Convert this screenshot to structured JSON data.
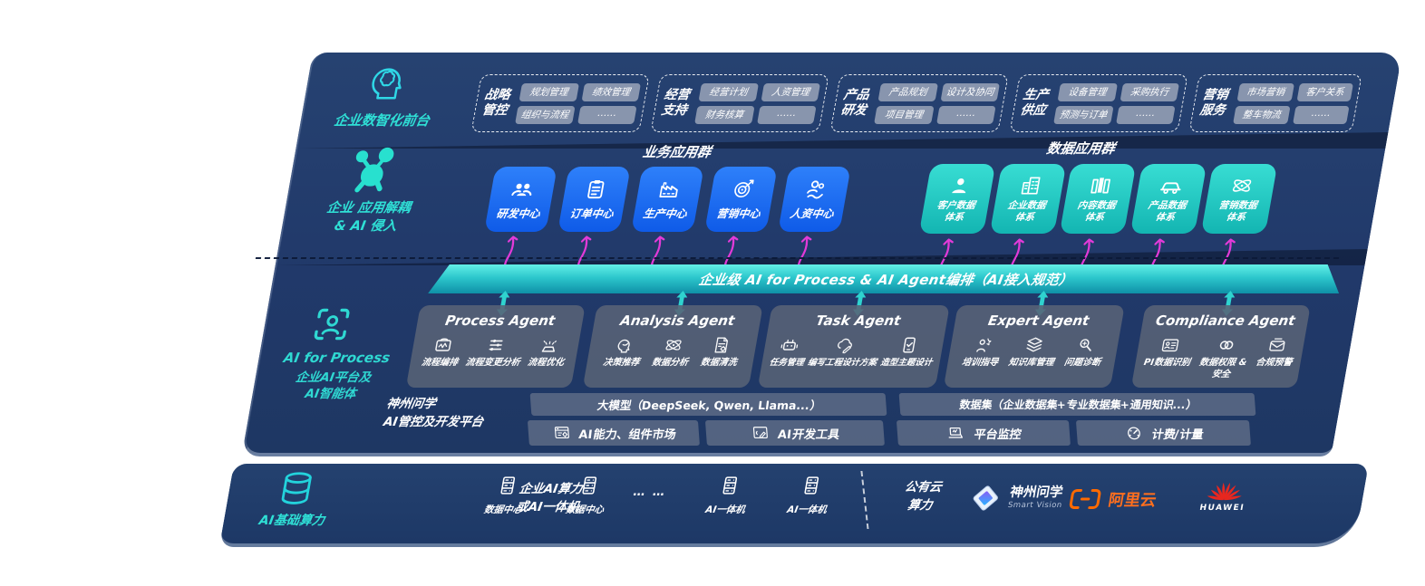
{
  "colors": {
    "body_navy": "#21396a",
    "accent_teal": "#2fe0d6",
    "app_blue": "#1b6cf2",
    "data_teal": "#1fc9c3",
    "bus_teal": "#2cc7cc",
    "flow_magenta": "#e23ad8",
    "aliyun_orange": "#ff6f1e",
    "huawei_red": "#e8271f"
  },
  "front_layer": {
    "icon": "head-brain-icon",
    "label": "企业数智化前台",
    "groups": [
      {
        "name": "战略管控",
        "items": [
          "规划管理",
          "绩效管理",
          "组织与流程",
          "……"
        ]
      },
      {
        "name": "经营支持",
        "items": [
          "经营计划",
          "人资管理",
          "财务核算",
          "……"
        ]
      },
      {
        "name": "产品研发",
        "items": [
          "产品规划",
          "设计及协同",
          "项目管理",
          "……"
        ]
      },
      {
        "name": "生产供应",
        "items": [
          "设备管理",
          "采购执行",
          "预测与订单",
          "……"
        ]
      },
      {
        "name": "营销服务",
        "items": [
          "市场营销",
          "客户关系",
          "整车物流",
          "……"
        ]
      }
    ]
  },
  "app_layer": {
    "icon": "molecule-icon",
    "side_label_line1": "企业 应用解耦",
    "side_label_line2": "& AI 侵入",
    "business_group_title": "业务应用群",
    "business_apps": [
      {
        "label": "研发中心",
        "icon": "team-icon"
      },
      {
        "label": "订单中心",
        "icon": "clipboard-icon"
      },
      {
        "label": "生产中心",
        "icon": "factory-icon"
      },
      {
        "label": "营销中心",
        "icon": "target-icon"
      },
      {
        "label": "人资中心",
        "icon": "hr-icon"
      }
    ],
    "data_group_title": "数据应用群",
    "data_apps": [
      {
        "label": "客户数据体系",
        "icon": "person-icon"
      },
      {
        "label": "企业数据体系",
        "icon": "building-icon"
      },
      {
        "label": "内容数据体系",
        "icon": "columns-icon"
      },
      {
        "label": "产品数据体系",
        "icon": "car-icon"
      },
      {
        "label": "营销数据体系",
        "icon": "atom-icon"
      }
    ]
  },
  "bus_bar": {
    "label": "企业级 AI for Process & AI Agent编排（AI接入规范）"
  },
  "agent_layer": {
    "icon": "scan-person-icon",
    "side_label_line1": "AI for Process",
    "side_label_line2": "企业AI平台及",
    "side_label_line3": "AI智能体",
    "agents": [
      {
        "title": "Process Agent",
        "items": [
          {
            "label": "流程编排",
            "icon": "wave-box-icon"
          },
          {
            "label": "流程变更分析",
            "icon": "sliders-icon"
          },
          {
            "label": "流程优化",
            "icon": "burst-icon"
          }
        ]
      },
      {
        "title": "Analysis Agent",
        "items": [
          {
            "label": "决策推荐",
            "icon": "head-chat-icon"
          },
          {
            "label": "数据分析",
            "icon": "atom-icon"
          },
          {
            "label": "数据清洗",
            "icon": "doc-gear-icon"
          }
        ]
      },
      {
        "title": "Task Agent",
        "items": [
          {
            "label": "任务管理",
            "icon": "robot-icon"
          },
          {
            "label": "编写工程设计方案",
            "icon": "cloud-pen-icon"
          },
          {
            "label": "造型主题设计",
            "icon": "phone-check-icon"
          }
        ]
      },
      {
        "title": "Expert Agent",
        "items": [
          {
            "label": "培训指导",
            "icon": "presenter-icon"
          },
          {
            "label": "知识库管理",
            "icon": "layers-icon"
          },
          {
            "label": "问题诊断",
            "icon": "diagnose-icon"
          }
        ]
      },
      {
        "title": "Compliance Agent",
        "items": [
          {
            "label": "PI数据识别",
            "icon": "id-card-icon"
          },
          {
            "label": "数据权限 & 安全",
            "icon": "rings-icon"
          },
          {
            "label": "合规预警",
            "icon": "mail-alert-icon"
          }
        ]
      }
    ]
  },
  "platform_layer": {
    "label_line1": "神州问学",
    "label_line2": "AI管控及开发平台",
    "model_bar": "大模型（DeepSeek, Qwen, Llama...）",
    "capability_cell": {
      "label": "AI能力、组件市场",
      "icon": "window-gear-icon"
    },
    "devtool_cell": {
      "label": "AI开发工具",
      "icon": "window-pen-icon"
    },
    "dataset_bar": "数据集（企业数据集+专业数据集+通用知识...）",
    "monitor_cell": {
      "label": "平台监控",
      "icon": "laptop-icon"
    },
    "billing_cell": {
      "label": "计费/计量",
      "icon": "gauge-icon"
    }
  },
  "infra_layer": {
    "icon": "database-icon",
    "label": "AI基础算力",
    "compute_label_line1": "企业AI算力",
    "compute_label_line2": "或AI一体机",
    "nodes": [
      {
        "label": "数据中心",
        "icon": "server-icon"
      },
      {
        "label": "数据中心",
        "icon": "server-icon"
      },
      {
        "label": "AI一体机",
        "icon": "server-icon"
      },
      {
        "label": "AI一体机",
        "icon": "server-icon"
      }
    ],
    "dots": "… …",
    "public_cloud_line1": "公有云",
    "public_cloud_line2": "算力",
    "vendors": [
      {
        "name": "神州问学",
        "subtitle": "Smart Vision",
        "icon": "szwx-logo"
      },
      {
        "name": "阿里云",
        "icon": "aliyun-logo"
      },
      {
        "name": "HUAWEI",
        "icon": "huawei-logo"
      }
    ]
  }
}
